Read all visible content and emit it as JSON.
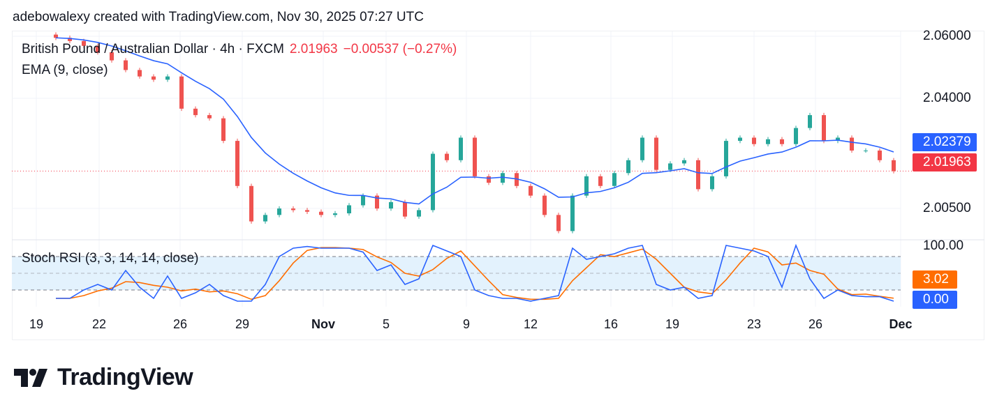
{
  "header": "adebowalexy created with TradingView.com, Nov 30, 2025 07:27 UTC",
  "legend": {
    "symbol": "British Pound / Australian Dollar · 4h · FXCM",
    "price": "2.01963",
    "change": "−0.00537 (−0.27%)",
    "ema": "EMA (9, close)",
    "stoch": "Stoch RSI (3, 3, 14, 14, close)"
  },
  "colors": {
    "up": "#26a69a",
    "down": "#ef5350",
    "ema": "#2962ff",
    "k": "#2962ff",
    "d": "#ff6d00",
    "band": "#e3f2fd"
  },
  "chart_data": [
    {
      "type": "candlestick",
      "title": "British Pound / Australian Dollar · 4h · FXCM",
      "ylim": [
        1.9985,
        2.063
      ],
      "yticks": [
        "2.06000",
        "2.04000",
        "2.00500"
      ],
      "last_price": "2.01963",
      "ema_value": "2.02379",
      "closes": [
        2.061,
        2.06,
        2.0585,
        2.0565,
        2.054,
        2.051,
        2.049,
        2.048,
        2.049,
        2.039,
        2.037,
        2.036,
        2.029,
        2.015,
        2.004,
        2.006,
        2.008,
        2.0075,
        2.007,
        2.006,
        2.0065,
        2.009,
        2.012,
        2.008,
        2.01,
        2.0055,
        2.0075,
        2.025,
        2.023,
        2.03,
        2.018,
        2.016,
        2.019,
        2.015,
        2.012,
        2.006,
        2.001,
        2.012,
        2.018,
        2.015,
        2.019,
        2.023,
        2.03,
        2.02,
        2.022,
        2.023,
        2.014,
        2.018,
        2.029,
        2.03,
        2.028,
        2.0295,
        2.028,
        2.033,
        2.037,
        2.029,
        2.03,
        2.026,
        2.026,
        2.023,
        2.0196
      ]
    },
    {
      "type": "line",
      "title": "Stoch RSI (3, 3, 14, 14, close)",
      "ylim": [
        0,
        100
      ],
      "yticks": [
        "100.00"
      ],
      "levels": [
        80,
        50,
        20
      ],
      "k_value": "0.00",
      "d_value": "3.02",
      "k": [
        5,
        5,
        20,
        30,
        20,
        55,
        25,
        5,
        45,
        5,
        15,
        30,
        10,
        0,
        0,
        30,
        80,
        95,
        98,
        95,
        95,
        95,
        88,
        55,
        65,
        30,
        40,
        100,
        90,
        80,
        20,
        10,
        5,
        5,
        0,
        5,
        10,
        95,
        75,
        80,
        85,
        95,
        100,
        30,
        20,
        25,
        5,
        10,
        100,
        95,
        90,
        80,
        25,
        100,
        40,
        5,
        20,
        10,
        8,
        8,
        0
      ]
    }
  ],
  "xaxis": [
    "19",
    "22",
    "26",
    "29",
    "Nov",
    "5",
    "9",
    "12",
    "16",
    "19",
    "23",
    "26",
    "Dec"
  ],
  "logo": "TradingView"
}
